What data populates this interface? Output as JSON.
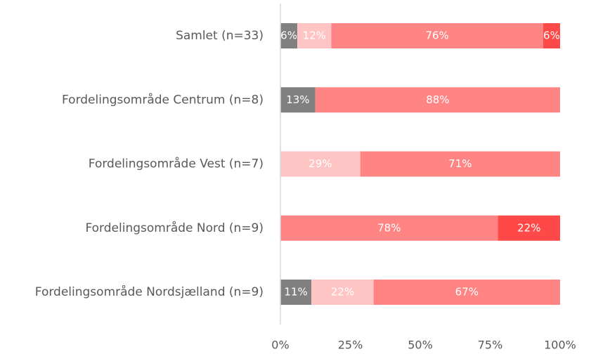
{
  "chart_data": {
    "type": "stacked-bar-horizontal",
    "categories": [
      "Samlet (n=33)",
      "Fordelingsområde Centrum (n=8)",
      "Fordelingsområde Vest (n=7)",
      "Fordelingsområde Nord (n=9)",
      "Fordelingsområde Nordsjælland (n=9)"
    ],
    "series": [
      {
        "color": "#808080",
        "values": [
          6.06,
          12.5,
          null,
          null,
          11.11
        ],
        "value_labels": [
          "6%",
          "13%",
          null,
          null,
          "11%"
        ]
      },
      {
        "color": "#ffc4c4",
        "values": [
          12.12,
          null,
          28.57,
          null,
          22.22
        ],
        "value_labels": [
          "12%",
          null,
          "29%",
          null,
          "22%"
        ]
      },
      {
        "color": "#ff8585",
        "values": [
          75.76,
          87.5,
          71.43,
          77.78,
          66.67
        ],
        "value_labels": [
          "76%",
          "88%",
          "71%",
          "78%",
          "67%"
        ]
      },
      {
        "color": "#ff4848",
        "values": [
          6.06,
          null,
          null,
          22.22,
          null
        ],
        "value_labels": [
          "6%",
          null,
          null,
          "22%",
          null
        ]
      }
    ],
    "xlim": [
      0,
      100
    ],
    "xticks": [
      {
        "value": 0,
        "label": "0%"
      },
      {
        "value": 25,
        "label": "25%"
      },
      {
        "value": 50,
        "label": "50%"
      },
      {
        "value": 75,
        "label": "75%"
      },
      {
        "value": 100,
        "label": "100%"
      }
    ]
  }
}
